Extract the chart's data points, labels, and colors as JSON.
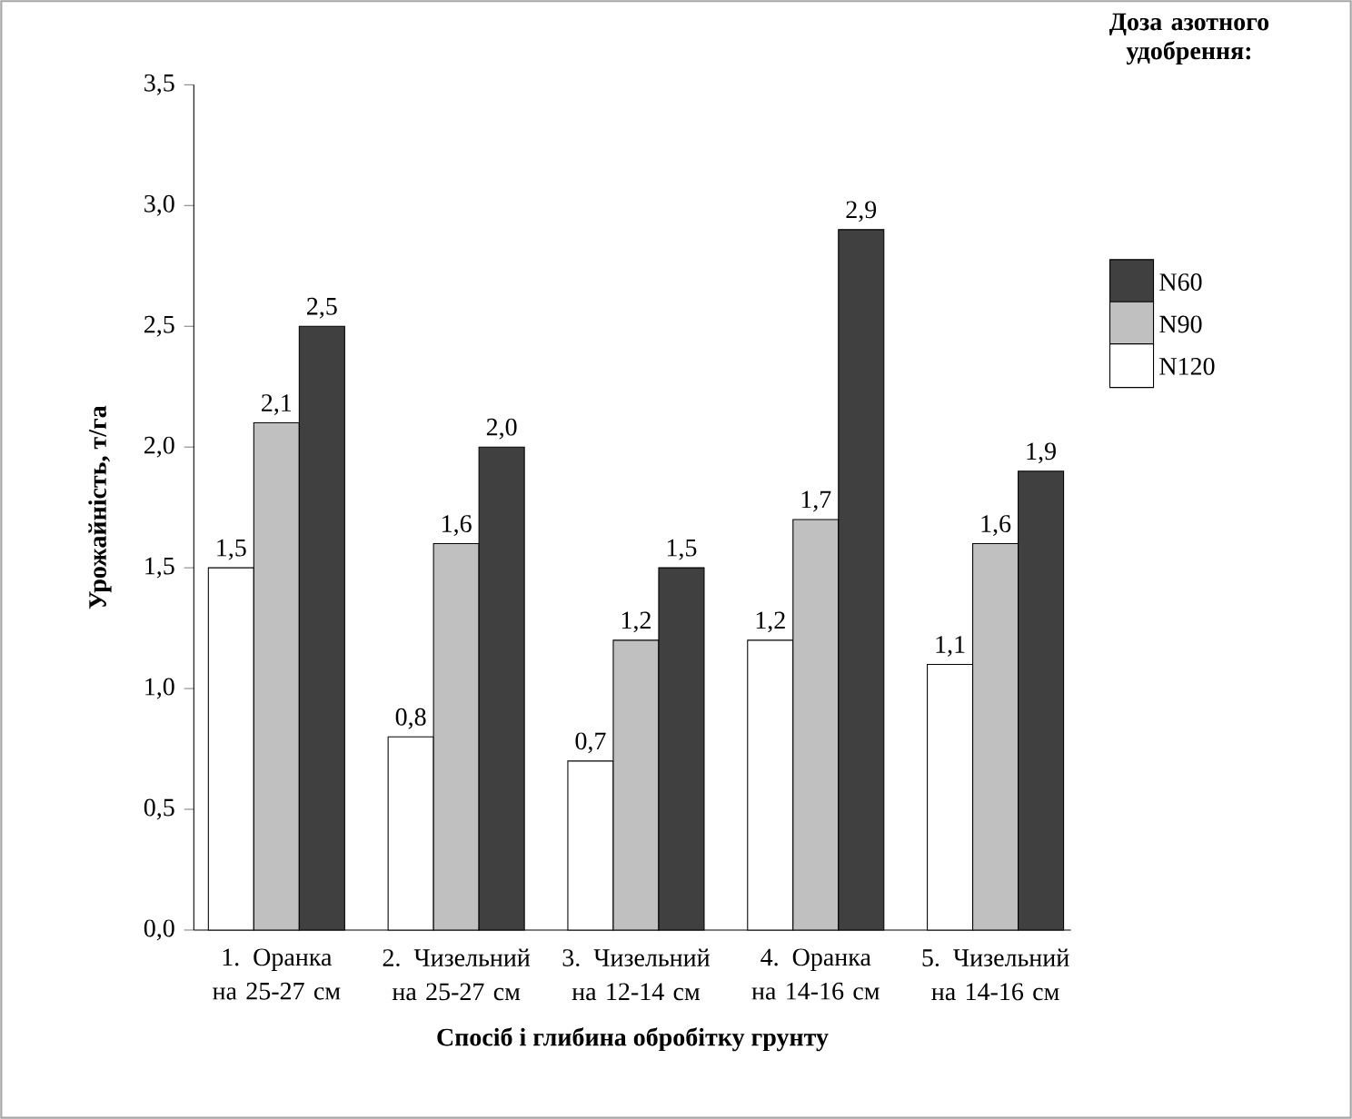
{
  "chart_data": {
    "type": "bar",
    "xlabel": "Спосіб і глибина обробітку грунту",
    "ylabel": "Урожайність, т/га",
    "legend_title": "Доза азотного удобрення:",
    "categories": [
      "1. Оранка на 25-27 см",
      "2. Чизельний на 25-27 см",
      "3. Чизельний на 12-14 см",
      "4. Оранка на 14-16 см",
      "5. Чизельний на 14-16 см"
    ],
    "series": [
      {
        "name": "N120",
        "color": "#ffffff",
        "values": [
          1.5,
          0.8,
          0.7,
          1.2,
          1.1
        ],
        "value_labels": [
          "1,5",
          "0,8",
          "0,7",
          "1,2",
          "1,1"
        ]
      },
      {
        "name": "N90",
        "color": "#c0c0c0",
        "values": [
          2.1,
          1.6,
          1.2,
          1.7,
          1.6
        ],
        "value_labels": [
          "2,1",
          "1,6",
          "1,2",
          "1,7",
          "1,6"
        ]
      },
      {
        "name": "N60",
        "color": "#404040",
        "values": [
          2.5,
          2.0,
          1.5,
          2.9,
          1.9
        ],
        "value_labels": [
          "2,5",
          "2,0",
          "1,5",
          "2,9",
          "1,9"
        ]
      }
    ],
    "ylim": [
      0,
      3.5
    ],
    "yticks": [
      {
        "value": 0,
        "label": "0,0"
      },
      {
        "value": 0.5,
        "label": "0,5"
      },
      {
        "value": 1,
        "label": "1,0"
      },
      {
        "value": 1.5,
        "label": "1,5"
      },
      {
        "value": 2,
        "label": "2,0"
      },
      {
        "value": 2.5,
        "label": "2,5"
      },
      {
        "value": 3,
        "label": "3,0"
      },
      {
        "value": 3.5,
        "label": "3,5"
      }
    ],
    "legend": "right",
    "grid": false
  }
}
